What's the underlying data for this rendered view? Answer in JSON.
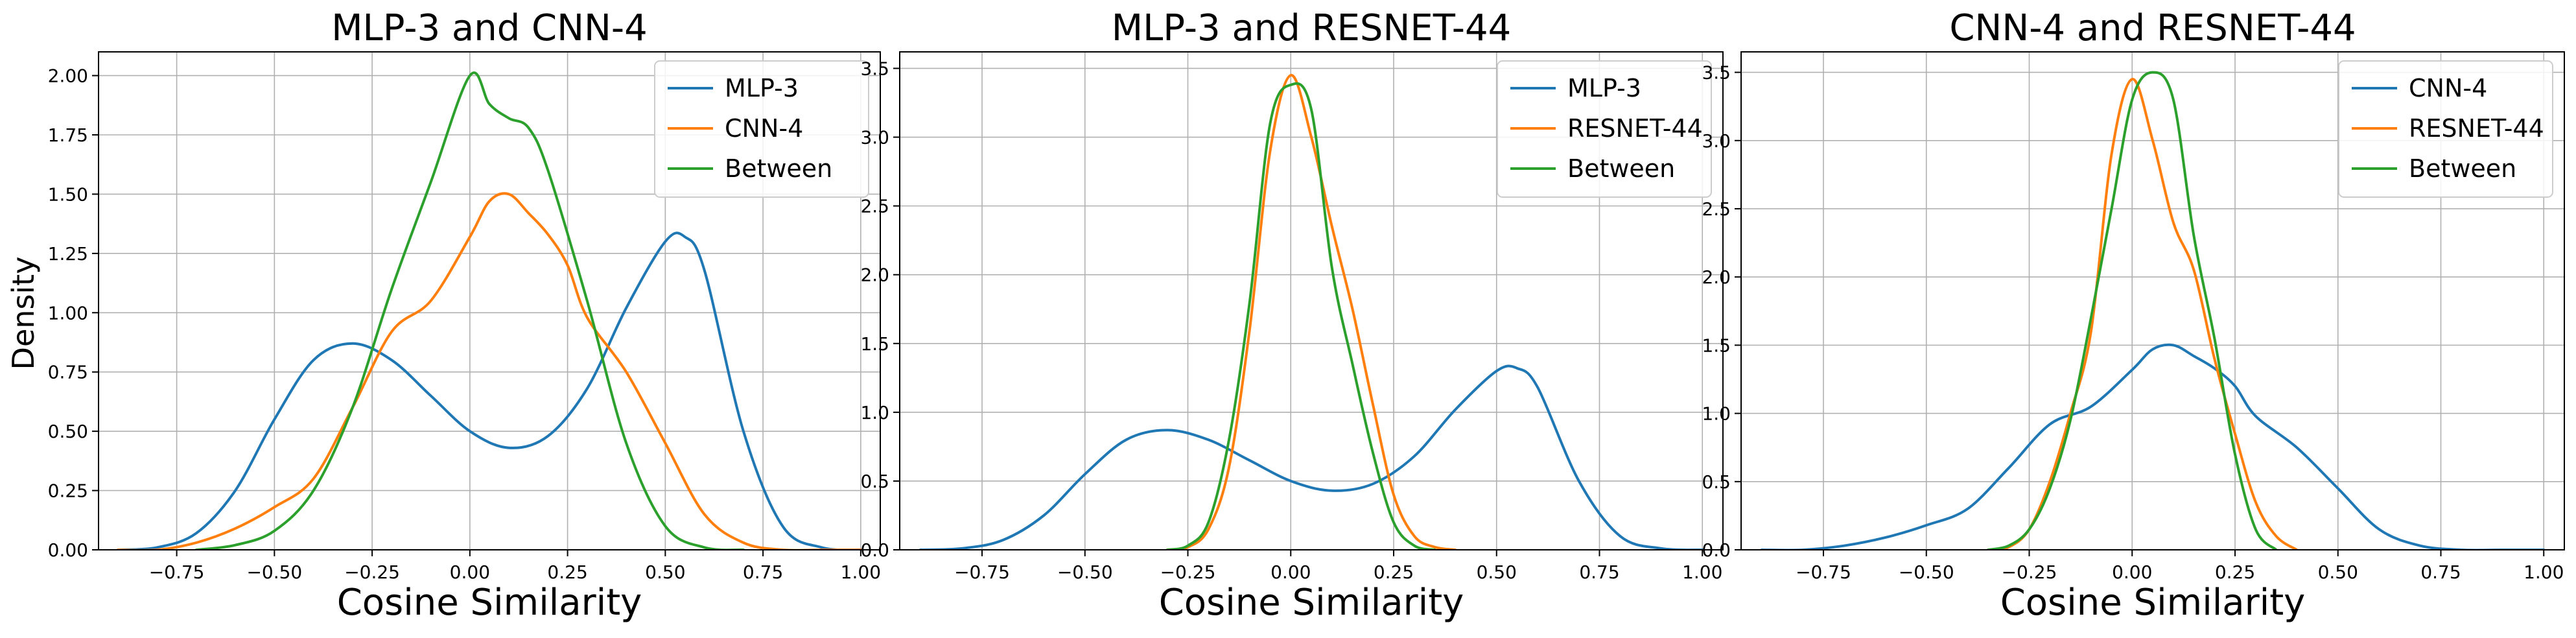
{
  "figure": {
    "ylabel": "Density"
  },
  "chart_data": [
    {
      "type": "line",
      "title": "MLP-3 and CNN-4",
      "xlabel": "Cosine Similarity",
      "ylabel": "Density",
      "xlim": [
        -0.95,
        1.05
      ],
      "ylim": [
        0,
        2.1
      ],
      "xticks": [
        -0.75,
        -0.5,
        -0.25,
        0.0,
        0.25,
        0.5,
        0.75,
        1.0
      ],
      "xtick_labels": [
        "−0.75",
        "−0.50",
        "−0.25",
        "0.00",
        "0.25",
        "0.50",
        "0.75",
        "1.00"
      ],
      "yticks": [
        0,
        0.25,
        0.5,
        0.75,
        1.0,
        1.25,
        1.5,
        1.75,
        2.0
      ],
      "ytick_labels": [
        "0.00",
        "0.25",
        "0.50",
        "0.75",
        "1.00",
        "1.25",
        "1.50",
        "1.75",
        "2.00"
      ],
      "grid": true,
      "legend_position": "top-right",
      "series": [
        {
          "name": "MLP-3",
          "color": "#1f77b4",
          "x": [
            -0.9,
            -0.8,
            -0.7,
            -0.6,
            -0.5,
            -0.4,
            -0.3,
            -0.2,
            -0.1,
            0.0,
            0.1,
            0.2,
            0.3,
            0.4,
            0.5,
            0.55,
            0.6,
            0.7,
            0.8,
            0.9,
            1.0
          ],
          "y": [
            0.0,
            0.01,
            0.07,
            0.25,
            0.55,
            0.8,
            0.87,
            0.8,
            0.65,
            0.5,
            0.43,
            0.48,
            0.68,
            1.02,
            1.3,
            1.32,
            1.18,
            0.5,
            0.1,
            0.01,
            0.0
          ]
        },
        {
          "name": "CNN-4",
          "color": "#ff7f0e",
          "x": [
            -0.9,
            -0.8,
            -0.7,
            -0.6,
            -0.5,
            -0.4,
            -0.3,
            -0.2,
            -0.1,
            0.0,
            0.05,
            0.1,
            0.15,
            0.2,
            0.25,
            0.3,
            0.4,
            0.5,
            0.6,
            0.7,
            0.8,
            0.9,
            1.0
          ],
          "y": [
            0.0,
            0.0,
            0.03,
            0.09,
            0.18,
            0.3,
            0.6,
            0.92,
            1.05,
            1.32,
            1.47,
            1.5,
            1.42,
            1.33,
            1.2,
            0.98,
            0.75,
            0.45,
            0.15,
            0.03,
            0.0,
            0.0,
            0.0
          ]
        },
        {
          "name": "Between",
          "color": "#2ca02c",
          "x": [
            -0.7,
            -0.6,
            -0.5,
            -0.4,
            -0.3,
            -0.2,
            -0.1,
            0.0,
            0.05,
            0.1,
            0.15,
            0.2,
            0.3,
            0.4,
            0.5,
            0.6,
            0.7
          ],
          "y": [
            0.0,
            0.02,
            0.08,
            0.25,
            0.6,
            1.1,
            1.55,
            2.0,
            1.88,
            1.82,
            1.78,
            1.6,
            1.05,
            0.45,
            0.1,
            0.01,
            0.0
          ]
        }
      ]
    },
    {
      "type": "line",
      "title": "MLP-3 and RESNET-44",
      "xlabel": "Cosine Similarity",
      "ylabel": "",
      "xlim": [
        -0.95,
        1.05
      ],
      "ylim": [
        0,
        3.62
      ],
      "xticks": [
        -0.75,
        -0.5,
        -0.25,
        0.0,
        0.25,
        0.5,
        0.75,
        1.0
      ],
      "xtick_labels": [
        "−0.75",
        "−0.50",
        "−0.25",
        "0.00",
        "0.25",
        "0.50",
        "0.75",
        "1.00"
      ],
      "yticks": [
        0,
        0.5,
        1.0,
        1.5,
        2.0,
        2.5,
        3.0,
        3.5
      ],
      "ytick_labels": [
        "0.0",
        "0.5",
        "1.0",
        "1.5",
        "2.0",
        "2.5",
        "3.0",
        "3.5"
      ],
      "grid": true,
      "legend_position": "top-right",
      "series": [
        {
          "name": "MLP-3",
          "color": "#1f77b4",
          "x": [
            -0.9,
            -0.8,
            -0.7,
            -0.6,
            -0.5,
            -0.4,
            -0.3,
            -0.2,
            -0.1,
            0.0,
            0.1,
            0.2,
            0.3,
            0.4,
            0.5,
            0.55,
            0.6,
            0.7,
            0.8,
            0.9,
            1.0
          ],
          "y": [
            0.0,
            0.01,
            0.07,
            0.25,
            0.55,
            0.8,
            0.87,
            0.8,
            0.65,
            0.5,
            0.43,
            0.48,
            0.68,
            1.02,
            1.3,
            1.32,
            1.18,
            0.5,
            0.1,
            0.01,
            0.0
          ]
        },
        {
          "name": "RESNET-44",
          "color": "#ff7f0e",
          "x": [
            -0.3,
            -0.25,
            -0.2,
            -0.15,
            -0.1,
            -0.05,
            0.0,
            0.05,
            0.1,
            0.15,
            0.2,
            0.25,
            0.3,
            0.35,
            0.4
          ],
          "y": [
            0.0,
            0.02,
            0.15,
            0.6,
            1.6,
            2.9,
            3.45,
            3.0,
            2.35,
            1.75,
            1.05,
            0.4,
            0.1,
            0.02,
            0.0
          ]
        },
        {
          "name": "Between",
          "color": "#2ca02c",
          "x": [
            -0.3,
            -0.25,
            -0.2,
            -0.15,
            -0.1,
            -0.05,
            0.0,
            0.05,
            0.1,
            0.15,
            0.2,
            0.25,
            0.3,
            0.35
          ],
          "y": [
            0.0,
            0.03,
            0.2,
            0.8,
            1.8,
            3.1,
            3.38,
            3.2,
            2.05,
            1.35,
            0.7,
            0.2,
            0.03,
            0.0
          ]
        }
      ]
    },
    {
      "type": "line",
      "title": "CNN-4 and RESNET-44",
      "xlabel": "Cosine Similarity",
      "ylabel": "",
      "xlim": [
        -0.95,
        1.05
      ],
      "ylim": [
        0,
        3.65
      ],
      "xticks": [
        -0.75,
        -0.5,
        -0.25,
        0.0,
        0.25,
        0.5,
        0.75,
        1.0
      ],
      "xtick_labels": [
        "−0.75",
        "−0.50",
        "−0.25",
        "0.00",
        "0.25",
        "0.50",
        "0.75",
        "1.00"
      ],
      "yticks": [
        0,
        0.5,
        1.0,
        1.5,
        2.0,
        2.5,
        3.0,
        3.5
      ],
      "ytick_labels": [
        "0.0",
        "0.5",
        "1.0",
        "1.5",
        "2.0",
        "2.5",
        "3.0",
        "3.5"
      ],
      "grid": true,
      "legend_position": "top-right",
      "series": [
        {
          "name": "CNN-4",
          "color": "#1f77b4",
          "x": [
            -0.9,
            -0.8,
            -0.7,
            -0.6,
            -0.5,
            -0.4,
            -0.3,
            -0.2,
            -0.1,
            0.0,
            0.05,
            0.1,
            0.15,
            0.2,
            0.25,
            0.3,
            0.4,
            0.5,
            0.6,
            0.7,
            0.8,
            0.9,
            1.0
          ],
          "y": [
            0.0,
            0.0,
            0.03,
            0.09,
            0.18,
            0.3,
            0.6,
            0.92,
            1.05,
            1.32,
            1.47,
            1.5,
            1.42,
            1.33,
            1.2,
            0.98,
            0.75,
            0.45,
            0.15,
            0.03,
            0.0,
            0.0,
            0.0
          ]
        },
        {
          "name": "RESNET-44",
          "color": "#ff7f0e",
          "x": [
            -0.35,
            -0.3,
            -0.25,
            -0.2,
            -0.15,
            -0.1,
            -0.05,
            0.0,
            0.05,
            0.1,
            0.15,
            0.2,
            0.25,
            0.3,
            0.35,
            0.4
          ],
          "y": [
            0.0,
            0.02,
            0.15,
            0.5,
            1.0,
            1.6,
            2.9,
            3.45,
            3.0,
            2.4,
            2.05,
            1.4,
            0.85,
            0.35,
            0.1,
            0.0
          ]
        },
        {
          "name": "Between",
          "color": "#2ca02c",
          "x": [
            -0.35,
            -0.3,
            -0.25,
            -0.2,
            -0.15,
            -0.1,
            -0.05,
            0.0,
            0.05,
            0.1,
            0.15,
            0.2,
            0.25,
            0.3,
            0.35
          ],
          "y": [
            0.0,
            0.03,
            0.15,
            0.45,
            0.95,
            1.7,
            2.5,
            3.3,
            3.5,
            3.3,
            2.3,
            1.55,
            0.7,
            0.15,
            0.0
          ]
        }
      ]
    }
  ]
}
